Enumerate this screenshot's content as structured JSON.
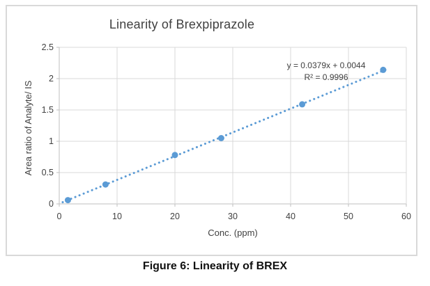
{
  "figure": {
    "caption": "Figure 6: Linearity of BREX"
  },
  "chart_data": {
    "type": "scatter",
    "title": "Linearity of Brexpiprazole",
    "xlabel": "Conc. (ppm)",
    "ylabel": "Area ratio of Analyte/ IS",
    "x": [
      1.5,
      8,
      20,
      28,
      42,
      56
    ],
    "y": [
      0.06,
      0.31,
      0.78,
      1.05,
      1.59,
      2.14
    ],
    "xlim": [
      0,
      60
    ],
    "ylim": [
      0,
      2.5
    ],
    "grid": true,
    "legend": "none",
    "xticks": {
      "values": [
        0,
        10,
        20,
        30,
        40,
        50,
        60
      ],
      "labels": [
        "0",
        "10",
        "20",
        "30",
        "40",
        "50",
        "60"
      ]
    },
    "yticks": {
      "values": [
        0,
        0.5,
        1,
        1.5,
        2,
        2.5
      ],
      "labels": [
        "0",
        "0.5",
        "1",
        "1.5",
        "2",
        "2.5"
      ]
    },
    "trendline": {
      "style": "dotted",
      "slope": 0.0379,
      "intercept": 0.0044,
      "x_start": 0.6,
      "x_end": 57,
      "equation": "y = 0.0379x + 0.0044",
      "r_squared_label": "R² = 0.9996"
    },
    "colors": {
      "marker": "#5b9bd5",
      "trendline": "#5b9bd5",
      "gridline": "#d9d9d9",
      "axis_line": "#bfbfbf",
      "text": "#404040"
    }
  }
}
